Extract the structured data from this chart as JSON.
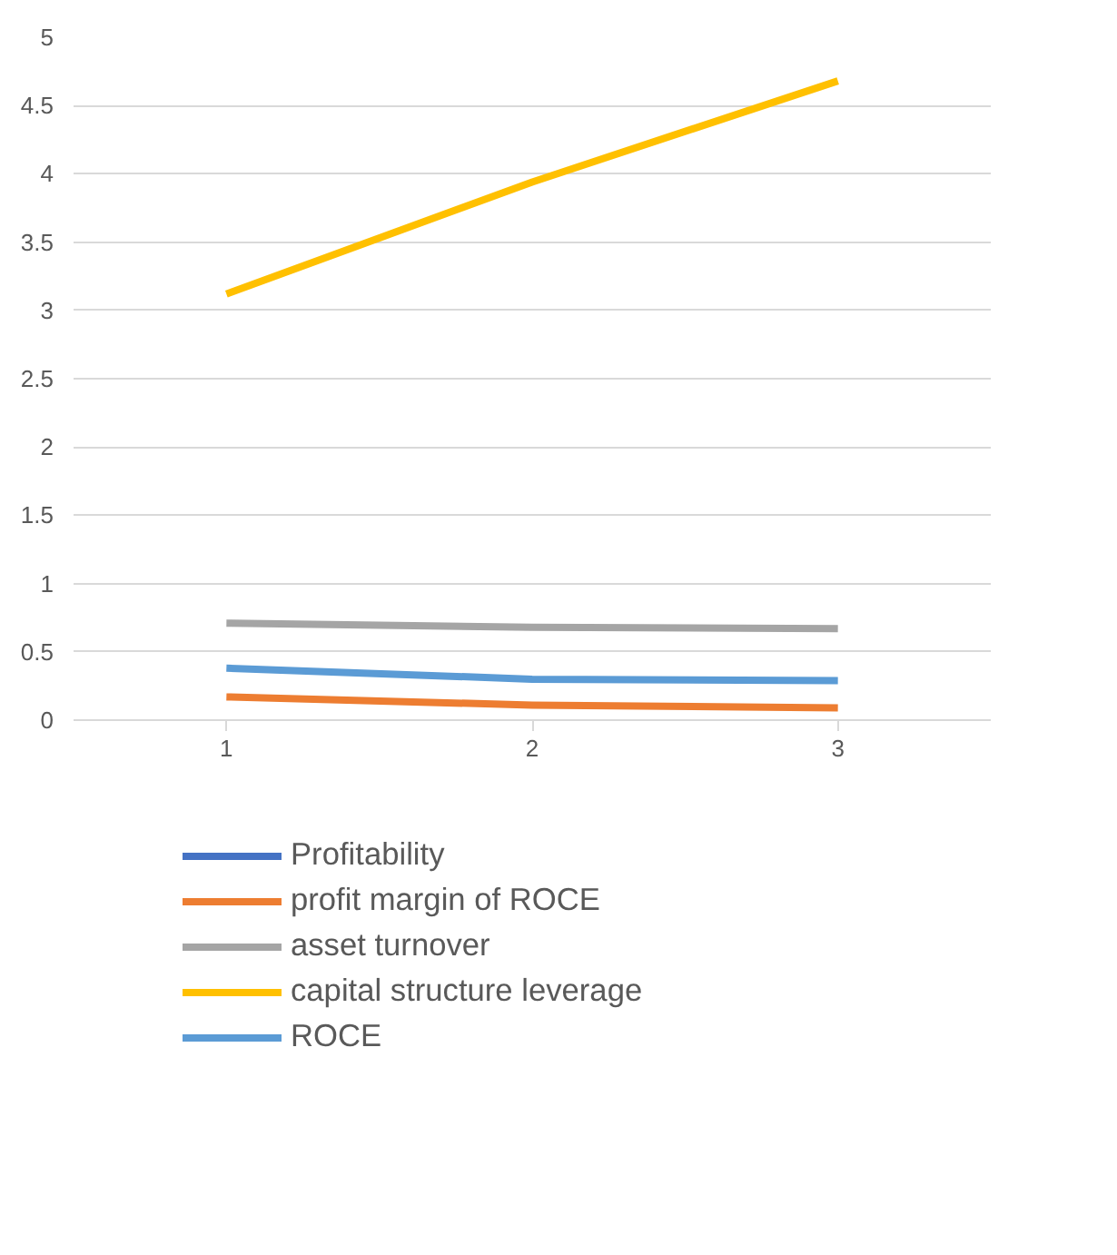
{
  "chart_data": {
    "type": "line",
    "categories": [
      "1",
      "2",
      "3"
    ],
    "series": [
      {
        "name": "Profitability",
        "color": "#4472c4",
        "values": [
          null,
          null,
          null
        ]
      },
      {
        "name": "profit margin of ROCE",
        "color": "#ed7d31",
        "values": [
          0.17,
          0.11,
          0.09
        ]
      },
      {
        "name": "asset turnover",
        "color": "#a5a5a5",
        "values": [
          0.71,
          0.68,
          0.67
        ]
      },
      {
        "name": "capital structure leverage",
        "color": "#ffc000",
        "values": [
          3.12,
          3.94,
          4.68
        ]
      },
      {
        "name": "ROCE",
        "color": "#5b9bd5",
        "values": [
          0.38,
          0.3,
          0.29
        ]
      }
    ],
    "ylim": [
      0,
      5
    ],
    "yticks": [
      0,
      0.5,
      1,
      1.5,
      2,
      2.5,
      3,
      3.5,
      4,
      4.5,
      5
    ],
    "grid": "y",
    "legend": "bottom",
    "marker": "none",
    "line_style": "solid"
  }
}
